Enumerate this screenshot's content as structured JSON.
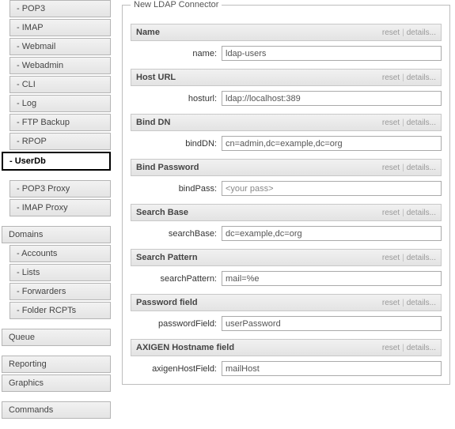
{
  "sidebar": {
    "group1": [
      " - POP3",
      " - IMAP",
      " - Webmail",
      " - Webadmin",
      " - CLI",
      " - Log",
      " - FTP Backup",
      " - RPOP"
    ],
    "active": " - UserDb",
    "group2": [
      " - POP3 Proxy",
      " - IMAP Proxy"
    ],
    "domainsHeader": "Domains",
    "domains": [
      " - Accounts",
      " - Lists",
      " - Forwarders",
      " - Folder RCPTs"
    ],
    "queue": "Queue",
    "reporting": "Reporting",
    "graphics": "Graphics",
    "commands": "Commands"
  },
  "panel": {
    "legend": "New LDAP Connector",
    "resetLabel": "reset",
    "detailsLabel": "details...",
    "sections": {
      "name": {
        "title": "Name",
        "label": "name:",
        "value": "ldap-users"
      },
      "hosturl": {
        "title": "Host URL",
        "label": "hosturl:",
        "value": "ldap://localhost:389"
      },
      "bindDN": {
        "title": "Bind DN",
        "label": "bindDN:",
        "value": "cn=admin,dc=example,dc=org"
      },
      "bindPass": {
        "title": "Bind Password",
        "label": "bindPass:",
        "placeholder": "<your pass>"
      },
      "searchBase": {
        "title": "Search Base",
        "label": "searchBase:",
        "value": "dc=example,dc=org"
      },
      "searchPattern": {
        "title": "Search Pattern",
        "label": "searchPattern:",
        "value": "mail=%e"
      },
      "passwordField": {
        "title": "Password field",
        "label": "passwordField:",
        "value": "userPassword"
      },
      "axigenHost": {
        "title": "AXIGEN Hostname field",
        "label": "axigenHostField:",
        "value": "mailHost"
      }
    }
  }
}
